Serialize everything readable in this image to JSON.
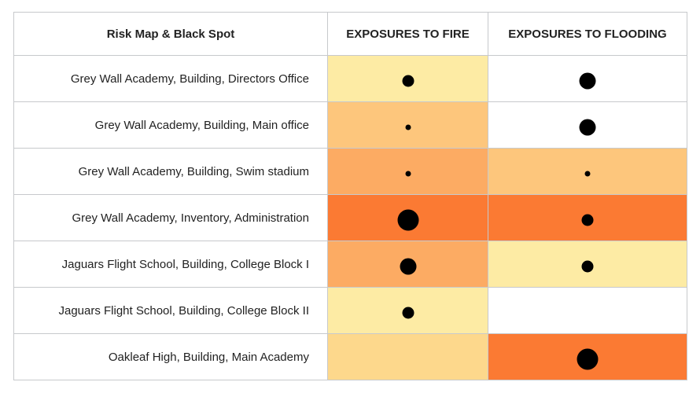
{
  "table": {
    "header": {
      "label": "Risk Map & Black Spot",
      "fire": "EXPOSURES TO FIRE",
      "flooding": "EXPOSURES TO FLOODING"
    },
    "risk_colors": {
      "none": "#ffffff",
      "low": "#fdeba4",
      "low_medium": "#fdd88c",
      "medium": "#fdc67c",
      "medium_high": "#fcab63",
      "high": "#fb7a33"
    },
    "rows": [
      {
        "label": "Grey Wall Academy, Building, Directors Office",
        "fire": {
          "level": "low",
          "dot": "medium"
        },
        "flooding": {
          "level": "none",
          "dot": "large"
        }
      },
      {
        "label": "Grey Wall Academy, Building, Main office",
        "fire": {
          "level": "medium",
          "dot": "small"
        },
        "flooding": {
          "level": "none",
          "dot": "medium_large"
        }
      },
      {
        "label": "Grey Wall Academy, Building, Swim stadium",
        "fire": {
          "level": "medium_high",
          "dot": "small"
        },
        "flooding": {
          "level": "medium",
          "dot": "small"
        }
      },
      {
        "label": "Grey Wall Academy, Inventory, Administration",
        "fire": {
          "level": "high",
          "dot": "xlarge"
        },
        "flooding": {
          "level": "high",
          "dot": "medium"
        }
      },
      {
        "label": "Jaguars Flight School, Building, College Block I",
        "fire": {
          "level": "medium_high",
          "dot": "medium_large"
        },
        "flooding": {
          "level": "low",
          "dot": "medium"
        }
      },
      {
        "label": "Jaguars Flight School, Building, College Block II",
        "fire": {
          "level": "low",
          "dot": "medium"
        },
        "flooding": {
          "level": "none",
          "dot": "none"
        }
      },
      {
        "label": "Oakleaf High, Building, Main Academy",
        "fire": {
          "level": "low_medium",
          "dot": "none"
        },
        "flooding": {
          "level": "high",
          "dot": "xlarge"
        }
      }
    ]
  }
}
